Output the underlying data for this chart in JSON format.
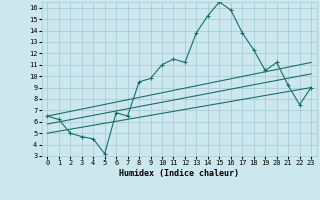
{
  "xlabel": "Humidex (Indice chaleur)",
  "background_color": "#cce8ee",
  "grid_color": "#aacdd6",
  "line_color": "#1a6e6a",
  "xlim": [
    -0.5,
    23.5
  ],
  "ylim": [
    3,
    16.5
  ],
  "x_ticks": [
    0,
    1,
    2,
    3,
    4,
    5,
    6,
    7,
    8,
    9,
    10,
    11,
    12,
    13,
    14,
    15,
    16,
    17,
    18,
    19,
    20,
    21,
    22,
    23
  ],
  "y_ticks": [
    3,
    4,
    5,
    6,
    7,
    8,
    9,
    10,
    11,
    12,
    13,
    14,
    15,
    16
  ],
  "series1_x": [
    0,
    1,
    2,
    3,
    4,
    5,
    6,
    7,
    8,
    9,
    10,
    11,
    12,
    13,
    14,
    15,
    16,
    17,
    18,
    19,
    20,
    21,
    22,
    23
  ],
  "series1_y": [
    6.5,
    6.2,
    5.0,
    4.7,
    4.5,
    3.2,
    6.8,
    6.5,
    9.5,
    9.8,
    11.0,
    11.5,
    11.2,
    13.8,
    15.3,
    16.5,
    15.8,
    13.8,
    12.3,
    10.5,
    11.2,
    9.2,
    7.5,
    9.0
  ],
  "series2_x": [
    0,
    23
  ],
  "series2_y": [
    6.5,
    11.2
  ],
  "series3_x": [
    0,
    23
  ],
  "series3_y": [
    5.8,
    10.2
  ],
  "series4_x": [
    0,
    23
  ],
  "series4_y": [
    5.0,
    9.0
  ],
  "font_family": "monospace"
}
